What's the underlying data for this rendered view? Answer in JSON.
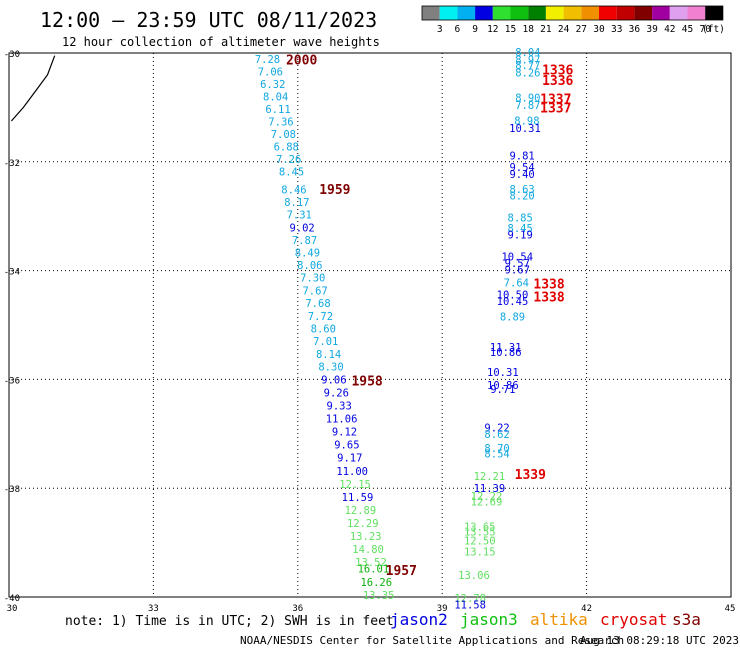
{
  "header": {
    "title": "12:00 — 23:59 UTC 08/11/2023",
    "subtitle": "12 hour collection of altimeter wave heights"
  },
  "colorbar": {
    "labels": [
      "3",
      "6",
      "9",
      "12",
      "15",
      "18",
      "21",
      "24",
      "27",
      "30",
      "33",
      "36",
      "39",
      "42",
      "45",
      "70"
    ],
    "unit": "(ft)",
    "colors": [
      "#808080",
      "#00f0f0",
      "#00b0f0",
      "#0000e0",
      "#30e030",
      "#10c010",
      "#008000",
      "#f0f000",
      "#f0c000",
      "#f09000",
      "#f00000",
      "#c00000",
      "#800000",
      "#a000a0",
      "#e0a0f0",
      "#f080d0",
      "#000000"
    ]
  },
  "footer": {
    "note": "note: 1) Time is in UTC; 2) SWH is in feet",
    "credit": "NOAA/NESDIS Center for Satellite Applications and Research",
    "timestamp": "Aug 13 08:29:18 UTC 2023"
  },
  "legend": [
    {
      "name": "jason2",
      "color": "#0000e0"
    },
    {
      "name": "jason3",
      "color": "#10c010"
    },
    {
      "name": "altika",
      "color": "#f09000"
    },
    {
      "name": "cryosat",
      "color": "#e00000"
    },
    {
      "name": "s3a",
      "color": "#800000"
    }
  ],
  "chart_data": {
    "type": "scatter",
    "xlim": [
      30,
      45
    ],
    "ylim": [
      -40,
      -30
    ],
    "x_ticks": [
      30,
      33,
      36,
      39,
      42,
      45
    ],
    "y_ticks": [
      -30,
      -32,
      -34,
      -36,
      -38,
      -40
    ],
    "x_tick_labels": [
      "30",
      "33",
      "36",
      "39",
      "42",
      "45"
    ],
    "y_tick_labels": [
      "-30",
      "-32",
      "-34",
      "-36",
      "-38",
      "-40"
    ],
    "grid": true,
    "coastline": [
      [
        30.05,
        -31.25
      ],
      [
        30.3,
        -31.0
      ],
      [
        30.55,
        -30.7
      ],
      [
        30.8,
        -30.4
      ],
      [
        30.95,
        -30.05
      ]
    ],
    "track_a": {
      "values": [
        {
          "x": 35.37,
          "y": -30.11,
          "v": "7.28"
        },
        {
          "x": 35.43,
          "y": -30.34,
          "v": "7.06"
        },
        {
          "x": 35.48,
          "y": -30.57,
          "v": "6.32"
        },
        {
          "x": 35.54,
          "y": -30.8,
          "v": "8.04"
        },
        {
          "x": 35.59,
          "y": -31.03,
          "v": "6.11"
        },
        {
          "x": 35.65,
          "y": -31.26,
          "v": "7.36"
        },
        {
          "x": 35.7,
          "y": -31.49,
          "v": "7.08"
        },
        {
          "x": 35.76,
          "y": -31.72,
          "v": "6.88"
        },
        {
          "x": 35.81,
          "y": -31.95,
          "v": "7.26"
        },
        {
          "x": 35.87,
          "y": -32.18,
          "v": "8.45"
        },
        {
          "x": 35.92,
          "y": -32.51,
          "v": "8.46"
        },
        {
          "x": 35.98,
          "y": -32.74,
          "v": "8.17"
        },
        {
          "x": 36.03,
          "y": -32.97,
          "v": "7.31"
        },
        {
          "x": 36.09,
          "y": -33.21,
          "v": "9.02"
        },
        {
          "x": 36.14,
          "y": -33.44,
          "v": "7.87"
        },
        {
          "x": 36.2,
          "y": -33.67,
          "v": "8.49"
        },
        {
          "x": 36.25,
          "y": -33.9,
          "v": "8.06"
        },
        {
          "x": 36.31,
          "y": -34.13,
          "v": "7.30"
        },
        {
          "x": 36.36,
          "y": -34.37,
          "v": "7.67"
        },
        {
          "x": 36.42,
          "y": -34.6,
          "v": "7.68"
        },
        {
          "x": 36.47,
          "y": -34.83,
          "v": "7.72"
        },
        {
          "x": 36.53,
          "y": -35.06,
          "v": "8.60"
        },
        {
          "x": 36.58,
          "y": -35.29,
          "v": "7.01"
        },
        {
          "x": 36.64,
          "y": -35.53,
          "v": "8.14"
        },
        {
          "x": 36.69,
          "y": -35.76,
          "v": "8.30"
        },
        {
          "x": 36.75,
          "y": -36.0,
          "v": "9.06"
        },
        {
          "x": 36.8,
          "y": -36.24,
          "v": "9.26"
        },
        {
          "x": 36.86,
          "y": -36.48,
          "v": "9.33"
        },
        {
          "x": 36.91,
          "y": -36.72,
          "v": "11.06"
        },
        {
          "x": 36.97,
          "y": -36.96,
          "v": "9.12"
        },
        {
          "x": 37.02,
          "y": -37.2,
          "v": "9.65"
        },
        {
          "x": 37.08,
          "y": -37.44,
          "v": "9.17"
        },
        {
          "x": 37.13,
          "y": -37.68,
          "v": "11.00"
        },
        {
          "x": 37.19,
          "y": -37.92,
          "v": "12.15"
        },
        {
          "x": 37.24,
          "y": -38.16,
          "v": "11.59"
        },
        {
          "x": 37.3,
          "y": -38.4,
          "v": "12.89"
        },
        {
          "x": 37.35,
          "y": -38.64,
          "v": "12.29"
        },
        {
          "x": 37.41,
          "y": -38.88,
          "v": "13.23"
        },
        {
          "x": 37.46,
          "y": -39.12,
          "v": "14.80"
        },
        {
          "x": 37.52,
          "y": -39.36,
          "v": "13.52"
        },
        {
          "x": 37.57,
          "y": -39.48,
          "v": "16.01"
        },
        {
          "x": 37.63,
          "y": -39.72,
          "v": "16.26"
        },
        {
          "x": 37.68,
          "y": -39.96,
          "v": "13.35"
        }
      ]
    },
    "track_b": {
      "values": [
        {
          "x": 40.78,
          "y": -29.98,
          "v": "8.04"
        },
        {
          "x": 40.78,
          "y": -30.12,
          "v": "8.97"
        },
        {
          "x": 40.78,
          "y": -30.22,
          "v": "8.77"
        },
        {
          "x": 40.78,
          "y": -30.36,
          "v": "8.26"
        },
        {
          "x": 40.78,
          "y": -30.82,
          "v": "8.90"
        },
        {
          "x": 40.78,
          "y": -30.96,
          "v": "7.87"
        },
        {
          "x": 40.76,
          "y": -31.24,
          "v": "8.98"
        },
        {
          "x": 40.72,
          "y": -31.38,
          "v": "10.31"
        },
        {
          "x": 40.66,
          "y": -31.88,
          "v": "9.81"
        },
        {
          "x": 40.66,
          "y": -32.1,
          "v": "9.54"
        },
        {
          "x": 40.66,
          "y": -32.22,
          "v": "9.40"
        },
        {
          "x": 40.66,
          "y": -32.5,
          "v": "8.63"
        },
        {
          "x": 40.66,
          "y": -32.62,
          "v": "8.20"
        },
        {
          "x": 40.62,
          "y": -33.02,
          "v": "8.85"
        },
        {
          "x": 40.62,
          "y": -33.22,
          "v": "8.45"
        },
        {
          "x": 40.62,
          "y": -33.34,
          "v": "9.19"
        },
        {
          "x": 40.56,
          "y": -33.74,
          "v": "10.54"
        },
        {
          "x": 40.56,
          "y": -33.86,
          "v": "9.57"
        },
        {
          "x": 40.56,
          "y": -33.98,
          "v": "9.67"
        },
        {
          "x": 40.54,
          "y": -34.22,
          "v": "7.64"
        },
        {
          "x": 40.46,
          "y": -34.44,
          "v": "10.50"
        },
        {
          "x": 40.46,
          "y": -34.56,
          "v": "10.45"
        },
        {
          "x": 40.46,
          "y": -34.84,
          "v": "8.89"
        },
        {
          "x": 40.32,
          "y": -35.4,
          "v": "11.31"
        },
        {
          "x": 40.32,
          "y": -35.5,
          "v": "10.86"
        },
        {
          "x": 40.26,
          "y": -35.86,
          "v": "10.31"
        },
        {
          "x": 40.26,
          "y": -36.1,
          "v": "10.86"
        },
        {
          "x": 40.26,
          "y": -36.18,
          "v": "9.71"
        },
        {
          "x": 40.14,
          "y": -36.88,
          "v": "9.22"
        },
        {
          "x": 40.14,
          "y": -37.0,
          "v": "8.62"
        },
        {
          "x": 40.14,
          "y": -37.26,
          "v": "8.70"
        },
        {
          "x": 40.14,
          "y": -37.36,
          "v": "8.54"
        },
        {
          "x": 39.98,
          "y": -37.78,
          "v": "12.21"
        },
        {
          "x": 39.98,
          "y": -38.0,
          "v": "11.39"
        },
        {
          "x": 39.92,
          "y": -38.14,
          "v": "12.22"
        },
        {
          "x": 39.92,
          "y": -38.24,
          "v": "12.69"
        },
        {
          "x": 39.78,
          "y": -38.7,
          "v": "13.65"
        },
        {
          "x": 39.78,
          "y": -38.8,
          "v": "13.55"
        },
        {
          "x": 39.78,
          "y": -38.96,
          "v": "12.50"
        },
        {
          "x": 39.78,
          "y": -39.16,
          "v": "13.15"
        },
        {
          "x": 39.66,
          "y": -39.6,
          "v": "13.06"
        },
        {
          "x": 39.58,
          "y": -40.02,
          "v": "12.78"
        },
        {
          "x": 39.58,
          "y": -40.14,
          "v": "11.58"
        }
      ]
    },
    "time_labels": [
      {
        "x": 36.08,
        "y": -30.12,
        "t": "2000",
        "color": "#800000"
      },
      {
        "x": 36.77,
        "y": -32.5,
        "t": "1959",
        "color": "#800000"
      },
      {
        "x": 37.44,
        "y": -36.02,
        "t": "1958",
        "color": "#800000"
      },
      {
        "x": 38.15,
        "y": -39.5,
        "t": "1957",
        "color": "#800000"
      },
      {
        "x": 41.4,
        "y": -30.3,
        "t": "1336",
        "color": "#e00000"
      },
      {
        "x": 41.4,
        "y": -30.5,
        "t": "1336",
        "color": "#e00000"
      },
      {
        "x": 41.36,
        "y": -30.84,
        "t": "1337",
        "color": "#e00000"
      },
      {
        "x": 41.36,
        "y": -31.0,
        "t": "1337",
        "color": "#e00000"
      },
      {
        "x": 41.22,
        "y": -34.24,
        "t": "1338",
        "color": "#e00000"
      },
      {
        "x": 41.22,
        "y": -34.48,
        "t": "1338",
        "color": "#e00000"
      },
      {
        "x": 40.83,
        "y": -37.74,
        "t": "1339",
        "color": "#e00000"
      }
    ]
  }
}
